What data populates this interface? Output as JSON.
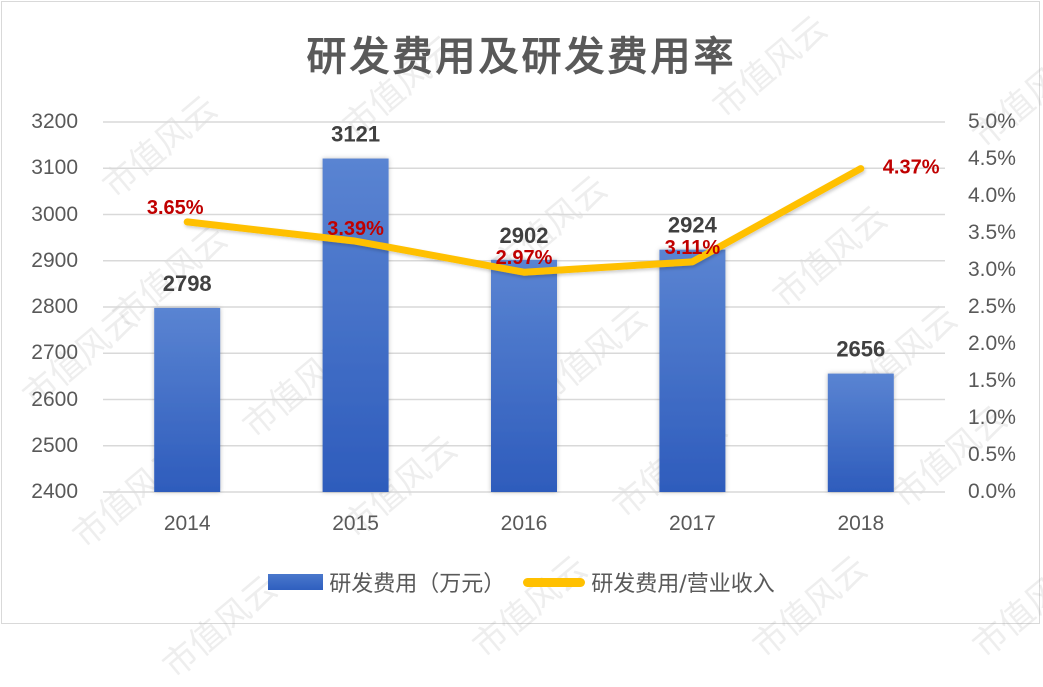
{
  "chart_data": {
    "type": "bar+line",
    "title": "研发费用及研发费用率",
    "categories": [
      "2014",
      "2015",
      "2016",
      "2017",
      "2018"
    ],
    "series": [
      {
        "name": "研发费用（万元）",
        "type": "bar",
        "axis": "left",
        "values": [
          2798,
          3121,
          2902,
          2924,
          2656
        ],
        "labels": [
          "2798",
          "3121",
          "2902",
          "2924",
          "2656"
        ],
        "color": "#4472c4"
      },
      {
        "name": "研发费用/营业收入",
        "type": "line",
        "axis": "right",
        "values": [
          3.65,
          3.39,
          2.97,
          3.11,
          4.37
        ],
        "labels": [
          "3.65%",
          "3.39%",
          "2.97%",
          "3.11%",
          "4.37%"
        ],
        "color": "#ffc000",
        "label_color": "#c00000"
      }
    ],
    "left_axis": {
      "ylim": [
        2400,
        3200
      ],
      "ticks": [
        "3200",
        "3100",
        "3000",
        "2900",
        "2800",
        "2700",
        "2600",
        "2500",
        "2400"
      ]
    },
    "right_axis": {
      "ylim": [
        0,
        5.0
      ],
      "ticks": [
        "5.0%",
        "4.5%",
        "4.0%",
        "3.5%",
        "3.0%",
        "2.5%",
        "2.0%",
        "1.5%",
        "1.0%",
        "0.5%",
        "0.0%"
      ]
    },
    "grid": true,
    "legend_position": "bottom",
    "xlabel": "",
    "ylabel": ""
  },
  "title": "研发费用及研发费用率",
  "legend": {
    "bar_label": "研发费用（万元）",
    "line_label": "研发费用/营业收入"
  },
  "watermark": "市值风云"
}
